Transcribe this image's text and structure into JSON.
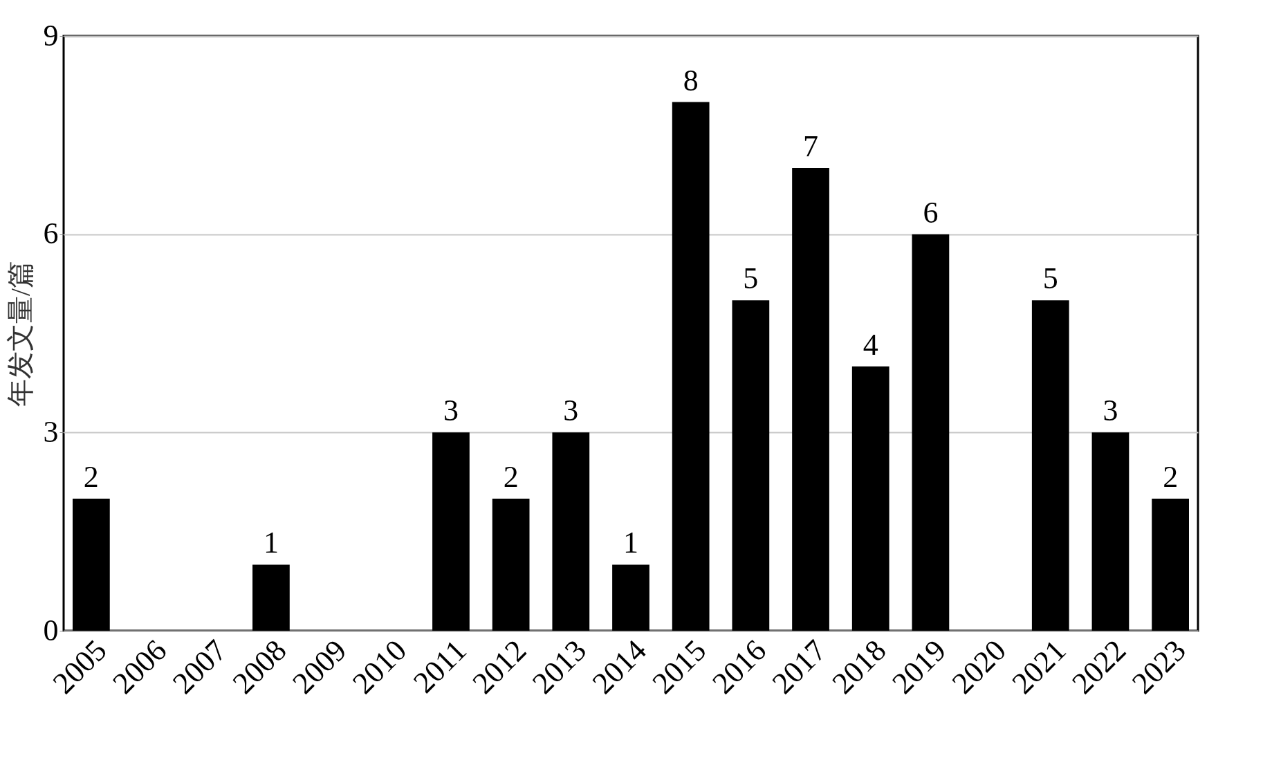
{
  "chart_data": {
    "type": "bar",
    "ylabel": "年发文量/篇",
    "categories": [
      "2005",
      "2006",
      "2007",
      "2008",
      "2009",
      "2010",
      "2011",
      "2012",
      "2013",
      "2014",
      "2015",
      "2016",
      "2017",
      "2018",
      "2019",
      "2020",
      "2021",
      "2022",
      "2023"
    ],
    "values": [
      2,
      0,
      0,
      1,
      0,
      0,
      3,
      2,
      3,
      1,
      8,
      5,
      7,
      4,
      6,
      0,
      5,
      3,
      2
    ],
    "value_labels": [
      "2",
      null,
      null,
      "1",
      null,
      null,
      "3",
      "2",
      "3",
      "1",
      "8",
      "5",
      "7",
      "4",
      "6",
      null,
      "5",
      "3",
      "2"
    ],
    "color": "#000000",
    "ylim": [
      0,
      9
    ],
    "yticks": [
      0,
      3,
      6,
      9
    ],
    "grid": "y"
  }
}
